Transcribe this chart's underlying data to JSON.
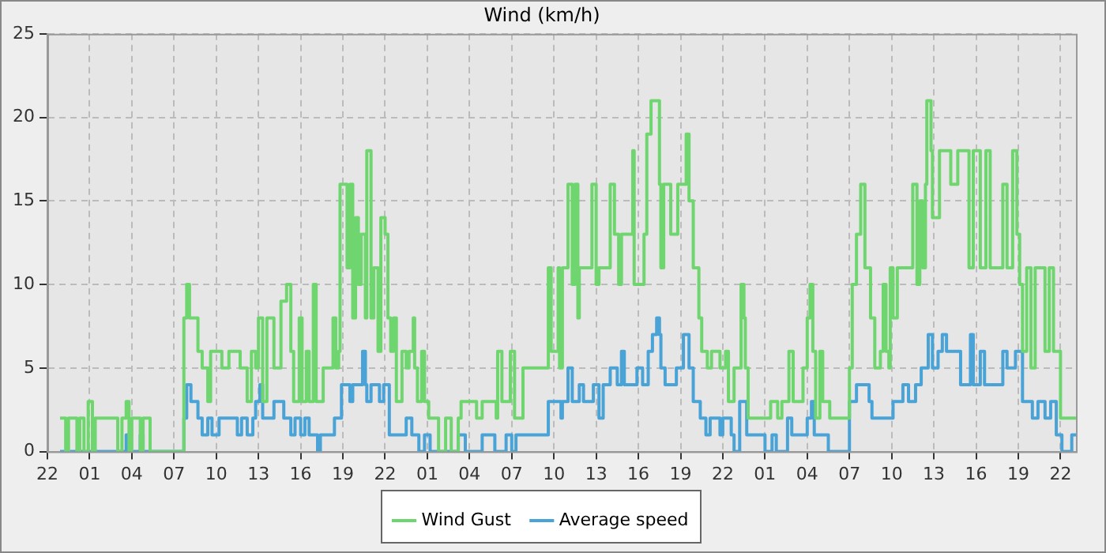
{
  "chart_data": {
    "type": "step",
    "title": "Wind (km/h)",
    "xlim": [
      "--01-01T22:00",
      "--01-04T23:06"
    ],
    "ylim": [
      0,
      25
    ],
    "yticks": [
      0,
      5,
      10,
      15,
      20,
      25
    ],
    "xticks": [
      {
        "value": "--01-01T22:00",
        "label": "22"
      },
      {
        "value": "--01-02T01:00",
        "label": "01"
      },
      {
        "value": "--01-02T04:00",
        "label": "04"
      },
      {
        "value": "--01-02T07:00",
        "label": "07"
      },
      {
        "value": "--01-02T10:00",
        "label": "10"
      },
      {
        "value": "--01-02T13:00",
        "label": "13"
      },
      {
        "value": "--01-02T16:00",
        "label": "16"
      },
      {
        "value": "--01-02T19:00",
        "label": "19"
      },
      {
        "value": "--01-02T22:00",
        "label": "22"
      },
      {
        "value": "--01-03T01:00",
        "label": "01"
      },
      {
        "value": "--01-03T04:00",
        "label": "04"
      },
      {
        "value": "--01-03T07:00",
        "label": "07"
      },
      {
        "value": "--01-03T10:00",
        "label": "10"
      },
      {
        "value": "--01-03T13:00",
        "label": "13"
      },
      {
        "value": "--01-03T16:00",
        "label": "16"
      },
      {
        "value": "--01-03T19:00",
        "label": "19"
      },
      {
        "value": "--01-03T22:00",
        "label": "22"
      },
      {
        "value": "--01-04T01:00",
        "label": "01"
      },
      {
        "value": "--01-04T04:00",
        "label": "04"
      },
      {
        "value": "--01-04T07:00",
        "label": "07"
      },
      {
        "value": "--01-04T10:00",
        "label": "10"
      },
      {
        "value": "--01-04T13:00",
        "label": "13"
      },
      {
        "value": "--01-04T16:00",
        "label": "16"
      },
      {
        "value": "--01-04T19:00",
        "label": "19"
      },
      {
        "value": "--01-04T22:00",
        "label": "22"
      }
    ],
    "grid": true,
    "legend": "bottom",
    "marker": "none",
    "line_style": "solid",
    "series": [
      {
        "name": "Wind Gust",
        "color": "#6fd66f",
        "x": [
          "--01-01T22:54",
          "--01-01T23:18",
          "--01-01T23:30",
          "--01-02T00:06",
          "--01-02T00:18",
          "--01-02T00:36",
          "--01-02T00:54",
          "--01-02T01:12",
          "--01-02T01:24",
          "--01-02T03:00",
          "--01-02T03:18",
          "--01-02T03:36",
          "--01-02T03:48",
          "--01-02T04:00",
          "--01-02T04:36",
          "--01-02T04:48",
          "--01-02T05:18",
          "--01-02T07:42",
          "--01-02T07:54",
          "--01-02T08:06",
          "--01-02T08:42",
          "--01-02T09:00",
          "--01-02T09:24",
          "--01-02T09:36",
          "--01-02T10:24",
          "--01-02T10:54",
          "--01-02T11:42",
          "--01-02T12:12",
          "--01-02T12:30",
          "--01-02T12:48",
          "--01-02T13:00",
          "--01-02T13:18",
          "--01-02T13:36",
          "--01-02T14:06",
          "--01-02T14:36",
          "--01-02T15:00",
          "--01-02T15:18",
          "--01-02T15:30",
          "--01-02T15:54",
          "--01-02T16:06",
          "--01-02T16:24",
          "--01-02T16:36",
          "--01-02T16:54",
          "--01-02T17:06",
          "--01-02T17:36",
          "--01-02T18:18",
          "--01-02T18:30",
          "--01-02T18:42",
          "--01-02T18:48",
          "--01-02T19:18",
          "--01-02T19:30",
          "--01-02T19:42",
          "--01-02T19:54",
          "--01-02T20:06",
          "--01-02T20:18",
          "--01-02T20:36",
          "--01-02T20:42",
          "--01-02T21:00",
          "--01-02T21:12",
          "--01-02T21:30",
          "--01-02T21:42",
          "--01-02T22:00",
          "--01-02T22:12",
          "--01-02T22:24",
          "--01-02T22:36",
          "--01-02T22:48",
          "--01-02T23:12",
          "--01-02T23:30",
          "--01-02T23:42",
          "--01-03T00:00",
          "--01-03T00:06",
          "--01-03T00:18",
          "--01-03T00:36",
          "--01-03T00:48",
          "--01-03T01:06",
          "--01-03T01:48",
          "--01-03T02:18",
          "--01-03T02:42",
          "--01-03T03:12",
          "--01-03T03:24",
          "--01-03T04:30",
          "--01-03T04:54",
          "--01-03T05:54",
          "--01-03T06:00",
          "--01-03T06:18",
          "--01-03T06:54",
          "--01-03T07:12",
          "--01-03T07:48",
          "--01-03T09:36",
          "--01-03T09:48",
          "--01-03T10:18",
          "--01-03T10:24",
          "--01-03T10:36",
          "--01-03T11:00",
          "--01-03T11:18",
          "--01-03T11:30",
          "--01-03T11:42",
          "--01-03T11:48",
          "--01-03T12:42",
          "--01-03T13:00",
          "--01-03T13:12",
          "--01-03T14:00",
          "--01-03T14:18",
          "--01-03T14:36",
          "--01-03T14:48",
          "--01-03T15:36",
          "--01-03T15:42",
          "--01-03T16:24",
          "--01-03T16:36",
          "--01-03T16:54",
          "--01-03T17:30",
          "--01-03T17:36",
          "--01-03T17:48",
          "--01-03T18:18",
          "--01-03T18:48",
          "--01-03T19:24",
          "--01-03T19:36",
          "--01-03T19:54",
          "--01-03T20:18",
          "--01-03T20:30",
          "--01-03T20:54",
          "--01-03T21:12",
          "--01-03T21:48",
          "--01-03T22:12",
          "--01-03T22:24",
          "--01-03T22:48",
          "--01-03T23:18",
          "--01-03T23:30",
          "--01-03T23:36",
          "--01-03T23:48",
          "--01-04T01:24",
          "--01-04T01:54",
          "--01-04T02:12",
          "--01-04T02:42",
          "--01-04T03:00",
          "--01-04T03:42",
          "--01-04T04:00",
          "--01-04T04:12",
          "--01-04T04:24",
          "--01-04T04:36",
          "--01-04T04:54",
          "--01-04T05:06",
          "--01-04T05:36",
          "--01-04T07:00",
          "--01-04T07:12",
          "--01-04T07:30",
          "--01-04T07:48",
          "--01-04T08:06",
          "--01-04T08:30",
          "--01-04T08:48",
          "--01-04T09:12",
          "--01-04T09:24",
          "--01-04T09:36",
          "--01-04T09:48",
          "--01-04T09:54",
          "--01-04T10:06",
          "--01-04T10:24",
          "--01-04T11:30",
          "--01-04T11:48",
          "--01-04T12:00",
          "--01-04T12:12",
          "--01-04T12:24",
          "--01-04T12:30",
          "--01-04T12:48",
          "--01-04T12:54",
          "--01-04T13:24",
          "--01-04T14:12",
          "--01-04T14:42",
          "--01-04T15:30",
          "--01-04T15:48",
          "--01-04T16:18",
          "--01-04T16:42",
          "--01-04T17:00",
          "--01-04T17:54",
          "--01-04T18:12",
          "--01-04T18:36",
          "--01-04T18:54",
          "--01-04T19:06",
          "--01-04T19:18",
          "--01-04T19:36",
          "--01-04T19:54",
          "--01-04T20:12",
          "--01-04T20:54",
          "--01-04T21:12",
          "--01-04T21:30",
          "--01-04T22:00",
          "--01-04T23:06"
        ],
        "values": [
          2,
          0,
          2,
          0,
          2,
          0,
          3,
          0,
          2,
          0,
          2,
          3,
          0,
          2,
          0,
          2,
          0,
          8,
          10,
          8,
          6,
          5,
          3,
          6,
          5,
          6,
          5,
          3,
          6,
          5,
          8,
          3,
          8,
          5,
          9,
          10,
          6,
          3,
          8,
          3,
          6,
          3,
          10,
          3,
          5,
          8,
          5,
          6,
          16,
          11,
          16,
          8,
          14,
          10,
          13,
          8,
          18,
          8,
          11,
          6,
          14,
          13,
          8,
          6,
          8,
          3,
          6,
          5,
          6,
          8,
          5,
          3,
          6,
          3,
          2,
          0,
          2,
          0,
          2,
          3,
          2,
          3,
          2,
          6,
          3,
          6,
          2,
          5,
          11,
          6,
          11,
          5,
          11,
          16,
          10,
          16,
          8,
          11,
          16,
          10,
          11,
          16,
          13,
          10,
          13,
          18,
          10,
          13,
          19,
          21,
          16,
          11,
          16,
          13,
          16,
          19,
          15,
          11,
          8,
          6,
          5,
          6,
          5,
          6,
          3,
          5,
          10,
          8,
          5,
          2,
          3,
          2,
          3,
          6,
          3,
          5,
          8,
          10,
          6,
          2,
          6,
          3,
          2,
          5,
          10,
          13,
          16,
          11,
          8,
          5,
          6,
          10,
          6,
          5,
          11,
          8,
          11,
          16,
          10,
          15,
          11,
          16,
          21,
          18,
          14,
          18,
          16,
          18,
          11,
          18,
          11,
          18,
          11,
          16,
          11,
          18,
          13,
          10,
          6,
          11,
          5,
          11,
          6,
          11,
          6,
          2,
          2
        ]
      },
      {
        "name": "Average speed",
        "color": "#4aa3d6",
        "x": [
          "--01-01T22:54",
          "--01-02T03:36",
          "--01-02T03:48",
          "--01-02T04:36",
          "--01-02T04:48",
          "--01-02T07:42",
          "--01-02T07:54",
          "--01-02T08:12",
          "--01-02T08:42",
          "--01-02T09:00",
          "--01-02T09:24",
          "--01-02T09:42",
          "--01-02T10:12",
          "--01-02T11:30",
          "--01-02T11:48",
          "--01-02T12:12",
          "--01-02T12:36",
          "--01-02T12:48",
          "--01-02T13:06",
          "--01-02T13:18",
          "--01-02T14:06",
          "--01-02T14:48",
          "--01-02T15:18",
          "--01-02T15:36",
          "--01-02T16:00",
          "--01-02T16:18",
          "--01-02T16:36",
          "--01-02T17:12",
          "--01-02T17:24",
          "--01-02T18:24",
          "--01-02T18:54",
          "--01-02T19:30",
          "--01-02T19:42",
          "--01-02T20:24",
          "--01-02T20:36",
          "--01-02T20:42",
          "--01-02T21:00",
          "--01-02T21:36",
          "--01-02T21:54",
          "--01-02T22:18",
          "--01-02T23:30",
          "--01-02T23:54",
          "--01-03T00:24",
          "--01-03T00:48",
          "--01-03T01:12",
          "--01-03T03:12",
          "--01-03T03:42",
          "--01-03T04:54",
          "--01-03T05:48",
          "--01-03T06:36",
          "--01-03T07:00",
          "--01-03T07:18",
          "--01-03T09:36",
          "--01-03T10:30",
          "--01-03T10:36",
          "--01-03T11:00",
          "--01-03T11:18",
          "--01-03T11:48",
          "--01-03T12:06",
          "--01-03T12:48",
          "--01-03T13:12",
          "--01-03T13:30",
          "--01-03T14:00",
          "--01-03T14:30",
          "--01-03T14:48",
          "--01-03T15:00",
          "--01-03T15:54",
          "--01-03T16:18",
          "--01-03T16:42",
          "--01-03T17:00",
          "--01-03T17:18",
          "--01-03T17:30",
          "--01-03T17:36",
          "--01-03T17:54",
          "--01-03T18:42",
          "--01-03T19:12",
          "--01-03T19:36",
          "--01-03T19:54",
          "--01-03T20:24",
          "--01-03T20:48",
          "--01-03T21:06",
          "--01-03T21:48",
          "--01-03T22:00",
          "--01-03T22:36",
          "--01-03T22:48",
          "--01-03T23:12",
          "--01-03T23:42",
          "--01-04T01:00",
          "--01-04T01:30",
          "--01-04T01:48",
          "--01-04T02:36",
          "--01-04T02:54",
          "--01-04T04:00",
          "--01-04T04:18",
          "--01-04T04:30",
          "--01-04T05:30",
          "--01-04T07:00",
          "--01-04T07:30",
          "--01-04T08:24",
          "--01-04T08:36",
          "--01-04T10:06",
          "--01-04T10:48",
          "--01-04T11:12",
          "--01-04T11:42",
          "--01-04T12:06",
          "--01-04T12:36",
          "--01-04T12:54",
          "--01-04T13:18",
          "--01-04T13:36",
          "--01-04T13:54",
          "--01-04T14:54",
          "--01-04T15:36",
          "--01-04T15:48",
          "--01-04T16:18",
          "--01-04T16:36",
          "--01-04T17:54",
          "--01-04T18:12",
          "--01-04T18:48",
          "--01-04T19:18",
          "--01-04T20:00",
          "--01-04T20:24",
          "--01-04T20:54",
          "--01-04T21:18",
          "--01-04T21:42",
          "--01-04T22:06",
          "--01-04T22:48",
          "--01-04T23:06"
        ],
        "values": [
          0,
          1,
          0,
          1,
          0,
          2,
          4,
          3,
          2,
          1,
          2,
          1,
          2,
          1,
          2,
          1,
          2,
          3,
          4,
          2,
          3,
          2,
          1,
          2,
          1,
          2,
          1,
          0,
          1,
          2,
          4,
          3,
          4,
          6,
          4,
          3,
          4,
          3,
          4,
          1,
          2,
          1,
          0,
          1,
          0,
          1,
          0,
          1,
          0,
          1,
          0,
          1,
          3,
          2,
          3,
          5,
          3,
          4,
          3,
          4,
          2,
          4,
          5,
          4,
          6,
          4,
          5,
          4,
          6,
          7,
          8,
          7,
          5,
          4,
          5,
          7,
          5,
          3,
          2,
          1,
          2,
          1,
          2,
          1,
          0,
          3,
          1,
          0,
          1,
          0,
          2,
          1,
          2,
          3,
          1,
          0,
          3,
          4,
          3,
          2,
          3,
          4,
          3,
          4,
          5,
          7,
          5,
          6,
          7,
          6,
          4,
          7,
          4,
          6,
          4,
          6,
          5,
          6,
          3,
          2,
          3,
          2,
          3,
          1,
          0,
          1,
          1
        ]
      }
    ]
  }
}
